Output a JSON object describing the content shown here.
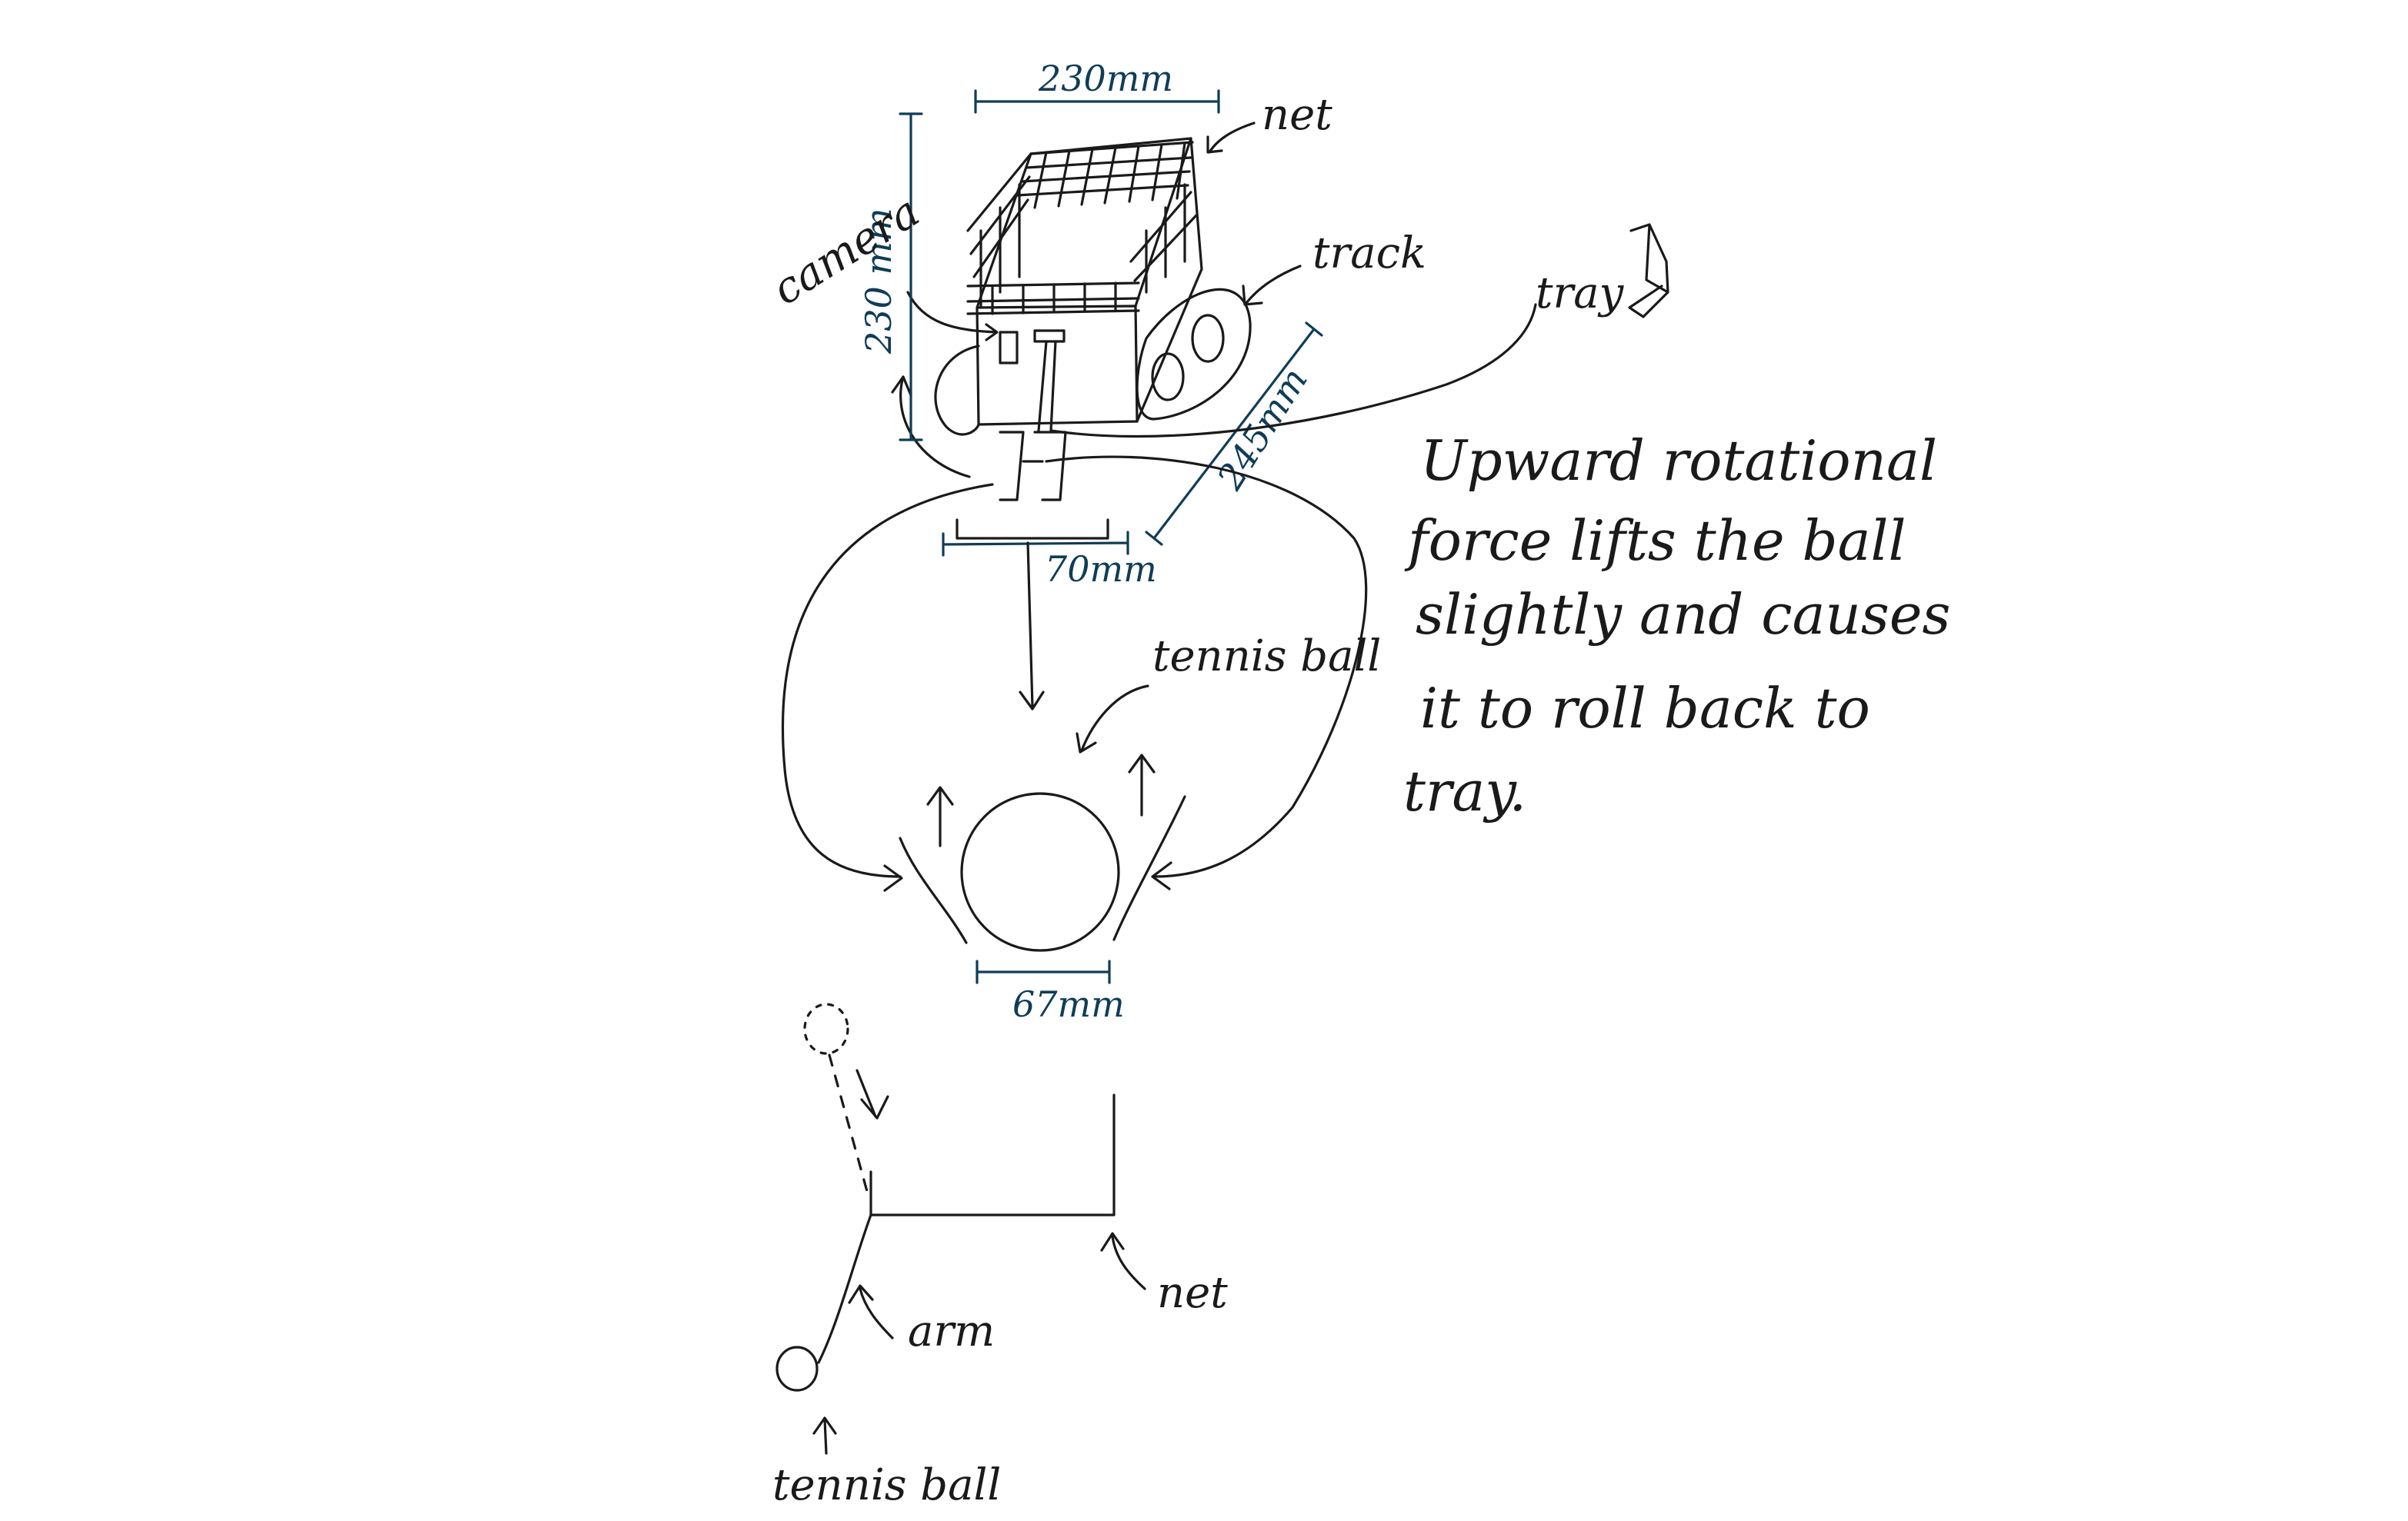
{
  "labels": {
    "net_top": "net",
    "track": "track",
    "tray": "tray",
    "camera": "camera",
    "tennis_ball_mid": "tennis ball",
    "arm": "arm",
    "net_bottom": "net",
    "tennis_ball_bottom": "tennis ball"
  },
  "dimensions": {
    "top_width": "230mm",
    "height": "230 mm",
    "diagonal": "245mm",
    "intake_width": "70mm",
    "ball_diameter": "67mm"
  },
  "note": {
    "lines": [
      "Upward rotational",
      "force lifts the ball",
      "slightly and causes",
      "it to roll back to",
      "tray."
    ]
  }
}
